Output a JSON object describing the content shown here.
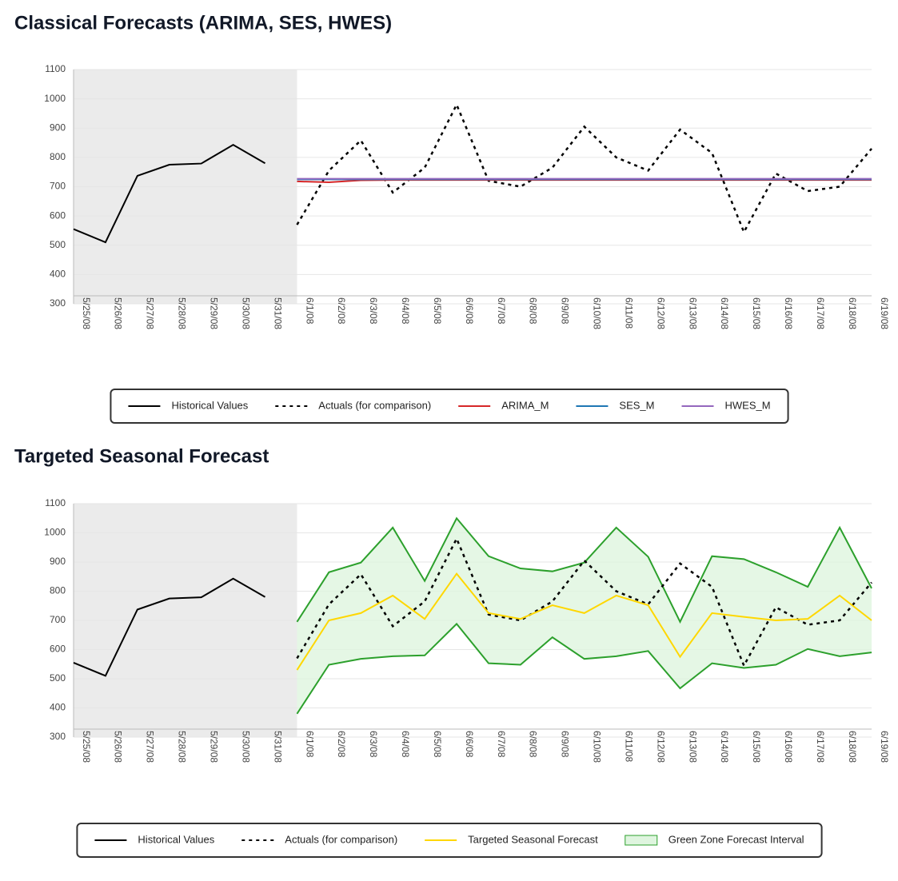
{
  "chart_data": [
    {
      "type": "line",
      "title": "Classical Forecasts (ARIMA, SES, HWES)",
      "categories": [
        "5/25/08",
        "5/26/08",
        "5/27/08",
        "5/28/08",
        "5/29/08",
        "5/30/08",
        "5/31/08",
        "6/1/08",
        "6/2/08",
        "6/3/08",
        "6/4/08",
        "6/5/08",
        "6/6/08",
        "6/7/08",
        "6/8/08",
        "6/9/08",
        "6/10/08",
        "6/11/08",
        "6/12/08",
        "6/13/08",
        "6/14/08",
        "6/15/08",
        "6/16/08",
        "6/17/08",
        "6/18/08",
        "6/19/08"
      ],
      "ylim": [
        300,
        1100
      ],
      "yticks": [
        300,
        400,
        500,
        600,
        700,
        800,
        900,
        1000,
        1100
      ],
      "grid": true,
      "series": [
        {
          "name": "Historical Values",
          "color": "#000000",
          "style": "solid",
          "values": [
            555,
            510,
            737,
            775,
            779,
            843,
            780,
            null,
            null,
            null,
            null,
            null,
            null,
            null,
            null,
            null,
            null,
            null,
            null,
            null,
            null,
            null,
            null,
            null,
            null,
            null
          ]
        },
        {
          "name": "Actuals (for comparison)",
          "color": "#000000",
          "style": "dotted",
          "values": [
            null,
            null,
            null,
            null,
            null,
            null,
            null,
            570,
            755,
            858,
            680,
            765,
            980,
            720,
            700,
            765,
            905,
            800,
            755,
            895,
            815,
            545,
            745,
            685,
            700,
            830
          ]
        },
        {
          "name": "ARIMA_M",
          "color": "#d62728",
          "style": "solid",
          "values": [
            null,
            null,
            null,
            null,
            null,
            null,
            null,
            718,
            715,
            722,
            723,
            723,
            723,
            723,
            723,
            723,
            723,
            723,
            723,
            723,
            723,
            723,
            723,
            723,
            723,
            723
          ]
        },
        {
          "name": "SES_M",
          "color": "#1f77b4",
          "style": "solid",
          "values": [
            null,
            null,
            null,
            null,
            null,
            null,
            null,
            725,
            725,
            725,
            725,
            725,
            725,
            725,
            725,
            725,
            725,
            725,
            725,
            725,
            725,
            725,
            725,
            725,
            725,
            725
          ]
        },
        {
          "name": "HWES_M",
          "color": "#9467bd",
          "style": "solid",
          "values": [
            null,
            null,
            null,
            null,
            null,
            null,
            null,
            727,
            727,
            727,
            727,
            727,
            727,
            727,
            727,
            727,
            727,
            727,
            727,
            727,
            727,
            727,
            727,
            727,
            727,
            727
          ]
        }
      ]
    },
    {
      "type": "line",
      "title": "Targeted Seasonal Forecast",
      "categories": [
        "5/25/08",
        "5/26/08",
        "5/27/08",
        "5/28/08",
        "5/29/08",
        "5/30/08",
        "5/31/08",
        "6/1/08",
        "6/2/08",
        "6/3/08",
        "6/4/08",
        "6/5/08",
        "6/6/08",
        "6/7/08",
        "6/8/08",
        "6/9/08",
        "6/10/08",
        "6/11/08",
        "6/12/08",
        "6/13/08",
        "6/14/08",
        "6/15/08",
        "6/16/08",
        "6/17/08",
        "6/18/08",
        "6/19/08"
      ],
      "ylim": [
        300,
        1100
      ],
      "yticks": [
        300,
        400,
        500,
        600,
        700,
        800,
        900,
        1000,
        1100
      ],
      "grid": true,
      "series": [
        {
          "name": "Historical Values",
          "color": "#000000",
          "style": "solid",
          "values": [
            555,
            510,
            737,
            775,
            779,
            843,
            780,
            null,
            null,
            null,
            null,
            null,
            null,
            null,
            null,
            null,
            null,
            null,
            null,
            null,
            null,
            null,
            null,
            null,
            null,
            null
          ]
        },
        {
          "name": "Actuals (for comparison)",
          "color": "#000000",
          "style": "dotted",
          "values": [
            null,
            null,
            null,
            null,
            null,
            null,
            null,
            570,
            755,
            858,
            680,
            765,
            980,
            720,
            700,
            765,
            905,
            800,
            755,
            895,
            815,
            545,
            745,
            685,
            700,
            830
          ]
        },
        {
          "name": "Targeted Seasonal Forecast",
          "color": "#ffd700",
          "style": "solid",
          "values": [
            null,
            null,
            null,
            null,
            null,
            null,
            null,
            530,
            700,
            725,
            785,
            705,
            860,
            725,
            705,
            752,
            725,
            785,
            752,
            575,
            725,
            712,
            700,
            705,
            785,
            700
          ]
        },
        {
          "name": "Green Zone Forecast Interval",
          "color": "#2ca02c",
          "style": "band",
          "lower": [
            null,
            null,
            null,
            null,
            null,
            null,
            null,
            380,
            548,
            568,
            577,
            580,
            688,
            553,
            548,
            642,
            568,
            577,
            595,
            467,
            553,
            537,
            548,
            602,
            577,
            590
          ],
          "upper": [
            null,
            null,
            null,
            null,
            null,
            null,
            null,
            695,
            865,
            898,
            1018,
            835,
            1050,
            920,
            878,
            868,
            898,
            1018,
            918,
            695,
            920,
            910,
            865,
            815,
            1018,
            810
          ]
        }
      ]
    }
  ]
}
